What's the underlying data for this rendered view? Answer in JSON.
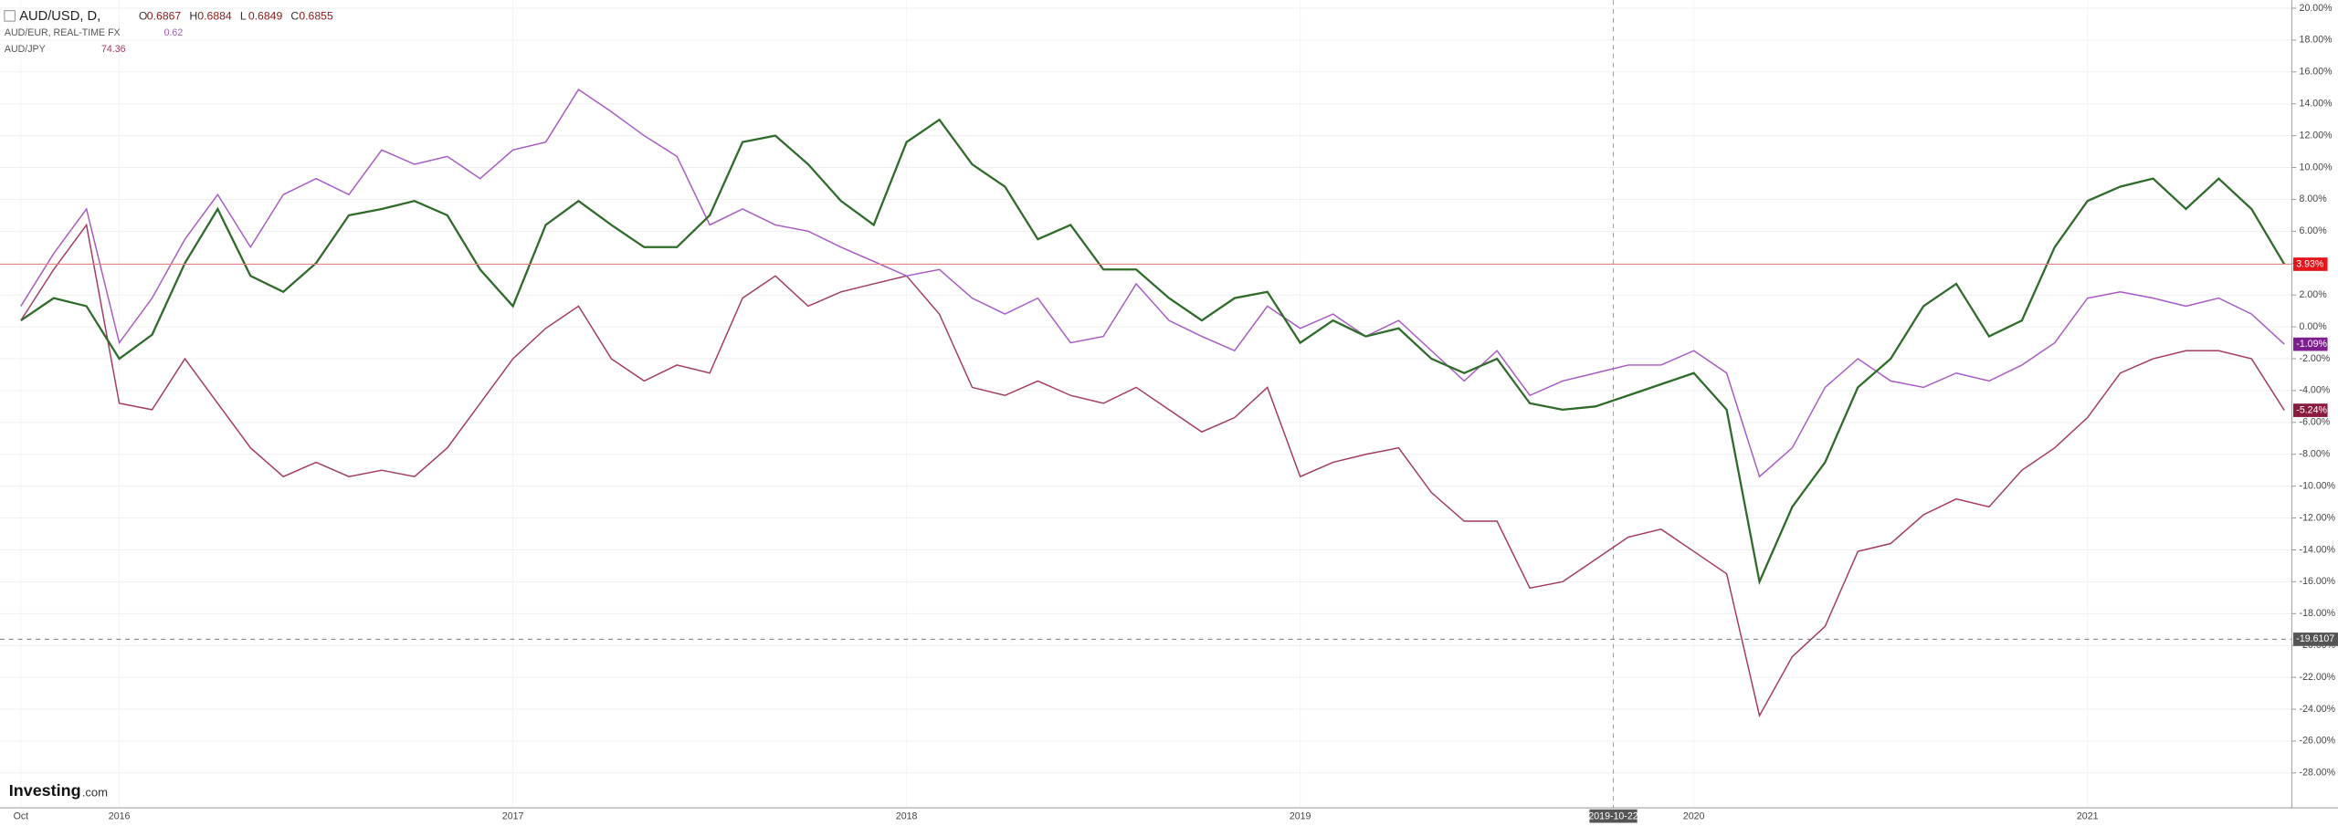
{
  "chart_data": {
    "type": "line",
    "header": {
      "symbol": "AUD/USD, D,",
      "ohlc": [
        [
          "O",
          "0.6867"
        ],
        [
          "H",
          "0.6884"
        ],
        [
          "L",
          "0.6849"
        ],
        [
          "C",
          "0.6855"
        ]
      ]
    },
    "logo": [
      "Investing",
      ".com"
    ],
    "categories": [
      "Oct",
      null,
      null,
      "2016",
      null,
      null,
      null,
      null,
      null,
      null,
      null,
      null,
      null,
      null,
      null,
      "2017",
      null,
      null,
      null,
      null,
      null,
      null,
      null,
      null,
      null,
      null,
      null,
      "2018",
      null,
      null,
      null,
      null,
      null,
      null,
      null,
      null,
      null,
      null,
      null,
      "2019",
      null,
      null,
      null,
      null,
      null,
      null,
      null,
      null,
      null,
      null,
      null,
      "2020",
      null,
      null,
      null,
      null,
      null,
      null,
      null,
      null,
      null,
      null,
      null,
      "2021",
      null,
      null,
      null,
      null,
      null,
      null
    ],
    "series": [
      {
        "name": "AUD/USD",
        "color": "#2f6b2a",
        "last_label": "3.93%",
        "tag_color": "#e5161b",
        "values": [
          0.4,
          1.8,
          1.3,
          -2,
          -0.5,
          4,
          7.4,
          3.2,
          2.2,
          4,
          7,
          7.4,
          7.9,
          7,
          3.6,
          1.3,
          6.4,
          7.9,
          6.4,
          5,
          5,
          7,
          11.6,
          12,
          10.2,
          7.9,
          6.4,
          11.6,
          13,
          10.2,
          8.8,
          5.5,
          6.4,
          3.6,
          3.6,
          1.8,
          0.4,
          1.8,
          2.2,
          -1,
          0.4,
          -0.6,
          -0.1,
          -2,
          -2.9,
          -2,
          -4.8,
          -5.2,
          -5,
          -4.3,
          -3.6,
          -2.9,
          -5.2,
          -16,
          -11.3,
          -8.5,
          -3.8,
          -2,
          1.3,
          2.7,
          -0.6,
          0.4,
          5,
          7.9,
          8.8,
          9.3,
          7.4,
          9.3,
          7.4,
          3.93
        ]
      },
      {
        "name": "AUD/EUR, REAL-TIME FX",
        "color": "#a859c4",
        "last_label": "-1.09%",
        "tag_color": "#7d1f8f",
        "quote": "0.62",
        "values": [
          1.3,
          4.6,
          7.4,
          -1,
          1.8,
          5.5,
          8.3,
          5,
          8.3,
          9.3,
          8.3,
          11.1,
          10.2,
          10.7,
          9.3,
          11.1,
          11.6,
          14.9,
          13.5,
          12,
          10.7,
          6.4,
          7.4,
          6.4,
          6,
          5,
          4.1,
          3.2,
          3.6,
          1.8,
          0.8,
          1.8,
          -1,
          -0.6,
          2.7,
          0.4,
          -0.6,
          -1.5,
          1.3,
          -0.1,
          0.8,
          -0.6,
          0.4,
          -1.5,
          -3.4,
          -1.5,
          -4.3,
          -3.4,
          -2.9,
          -2.4,
          -2.4,
          -1.5,
          -2.9,
          -9.4,
          -7.6,
          -3.8,
          -2,
          -3.4,
          -3.8,
          -2.9,
          -3.4,
          -2.4,
          -1,
          1.8,
          2.2,
          1.8,
          1.3,
          1.8,
          0.8,
          -1.09
        ]
      },
      {
        "name": "AUD/JPY",
        "color": "#a33a62",
        "last_label": "-5.24%",
        "tag_color": "#8b1a3f",
        "quote": "74.36",
        "values": [
          0.4,
          3.6,
          6.4,
          -4.8,
          -5.2,
          -2,
          -4.8,
          -7.6,
          -9.4,
          -8.5,
          -9.4,
          -9,
          -9.4,
          -7.6,
          -4.8,
          -2,
          -0.1,
          1.3,
          -2,
          -3.4,
          -2.4,
          -2.9,
          1.8,
          3.2,
          1.3,
          2.2,
          2.7,
          3.2,
          0.8,
          -3.8,
          -4.3,
          -3.4,
          -4.3,
          -4.8,
          -3.8,
          -5.2,
          -6.6,
          -5.7,
          -3.8,
          -9.4,
          -8.5,
          -8,
          -7.6,
          -10.4,
          -12.2,
          -12.2,
          -16.4,
          -16,
          -14.6,
          -13.2,
          -12.7,
          -14.1,
          -15.5,
          -24.4,
          -20.7,
          -18.8,
          -14.1,
          -13.6,
          -11.8,
          -10.8,
          -11.3,
          -9,
          -7.6,
          -5.7,
          -2.9,
          -2,
          -1.5,
          -1.5,
          -2,
          -5.24
        ]
      }
    ],
    "crosshair": {
      "y": -19.6107,
      "x_label": "2019-10-22"
    },
    "ylim": [
      -30.1,
      20.5
    ],
    "yticks": [
      {
        "value": 20,
        "label": "20.00%"
      },
      {
        "value": 18,
        "label": "18.00%"
      },
      {
        "value": 16,
        "label": "16.00%"
      },
      {
        "value": 14,
        "label": "14.00%"
      },
      {
        "value": 12,
        "label": "12.00%"
      },
      {
        "value": 10,
        "label": "10.00%"
      },
      {
        "value": 8,
        "label": "8.00%"
      },
      {
        "value": 6,
        "label": "6.00%"
      },
      {
        "value": 4,
        "label": "4.00%"
      },
      {
        "value": 2,
        "label": "2.00%"
      },
      {
        "value": 0,
        "label": "0.00%"
      },
      {
        "value": -2,
        "label": "-2.00%"
      },
      {
        "value": -4,
        "label": "-4.00%"
      },
      {
        "value": -6,
        "label": "-6.00%"
      },
      {
        "value": -8,
        "label": "-8.00%"
      },
      {
        "value": -10,
        "label": "-10.00%"
      },
      {
        "value": -12,
        "label": "-12.00%"
      },
      {
        "value": -14,
        "label": "-14.00%"
      },
      {
        "value": -16,
        "label": "-16.00%"
      },
      {
        "value": -18,
        "label": "-18.00%"
      },
      {
        "value": -20,
        "label": "-20.00%"
      },
      {
        "value": -22,
        "label": "-22.00%"
      },
      {
        "value": -24,
        "label": "-24.00%"
      },
      {
        "value": -26,
        "label": "-26.00%"
      },
      {
        "value": -28,
        "label": "-28.00%"
      }
    ],
    "grid": true
  }
}
